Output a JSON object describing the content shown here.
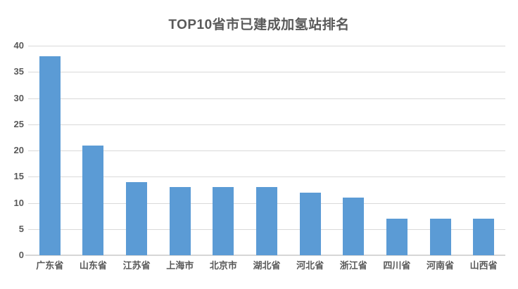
{
  "chart_data": {
    "type": "bar",
    "title": "TOP10省市已建成加氢站排名",
    "categories": [
      "广东省",
      "山东省",
      "江苏省",
      "上海市",
      "北京市",
      "湖北省",
      "河北省",
      "浙江省",
      "四川省",
      "河南省",
      "山西省"
    ],
    "values": [
      38,
      21,
      14,
      13,
      13,
      13,
      12,
      11,
      7,
      7,
      7
    ],
    "xlabel": "",
    "ylabel": "",
    "ylim": [
      0,
      40
    ],
    "yticks": [
      0,
      5,
      10,
      15,
      20,
      25,
      30,
      35,
      40
    ],
    "grid": true,
    "legend": false,
    "colors": {
      "bar": "#5b9bd5",
      "gridline": "#d9d9d9",
      "axis_line": "#d6d6d6",
      "labels": "#595959",
      "title": "#595959",
      "background": "#ffffff"
    }
  }
}
